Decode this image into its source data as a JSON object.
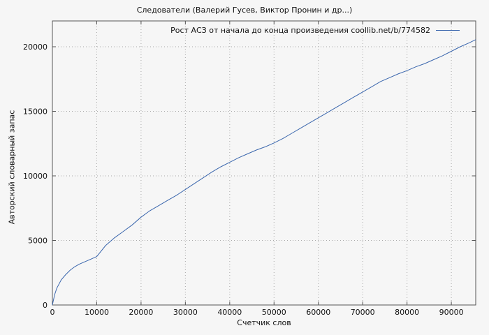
{
  "chart_data": {
    "type": "line",
    "title": "Следователи (Валерий Гусев, Виктор Пронин и др...)",
    "legend": "Рост АСЗ от начала до конца произведения coollib.net/b/774582",
    "xlabel": "Счетчик слов",
    "ylabel": "Авторский словарный запас",
    "xlim": [
      0,
      95500
    ],
    "ylim": [
      0,
      22000
    ],
    "grid": true,
    "legend_position": "top-right-inside",
    "xticks": [
      0,
      10000,
      20000,
      30000,
      40000,
      50000,
      60000,
      70000,
      80000,
      90000
    ],
    "xtick_labels": [
      "0",
      "10000",
      "20000",
      "30000",
      "40000",
      "50000",
      "60000",
      "70000",
      "80000",
      "90000"
    ],
    "yticks": [
      0,
      5000,
      10000,
      15000,
      20000
    ],
    "ytick_labels": [
      "0",
      "5000",
      "10000",
      "15000",
      "20000"
    ],
    "x": [
      0,
      500,
      1000,
      2000,
      3000,
      4000,
      5000,
      6000,
      7000,
      8000,
      9000,
      10000,
      12000,
      14000,
      16000,
      18000,
      20000,
      22000,
      24000,
      26000,
      28000,
      30000,
      32000,
      34000,
      36000,
      38000,
      40000,
      42000,
      44000,
      46000,
      48000,
      50000,
      52000,
      54000,
      56000,
      58000,
      60000,
      62000,
      64000,
      66000,
      68000,
      70000,
      72000,
      74000,
      76000,
      78000,
      80000,
      82000,
      84000,
      86000,
      88000,
      90000,
      92000,
      94000,
      95500
    ],
    "y": [
      0,
      800,
      1300,
      1950,
      2350,
      2700,
      2950,
      3150,
      3300,
      3450,
      3600,
      3750,
      4600,
      5200,
      5700,
      6200,
      6800,
      7300,
      7700,
      8100,
      8500,
      8950,
      9400,
      9850,
      10300,
      10700,
      11050,
      11400,
      11700,
      12000,
      12250,
      12550,
      12900,
      13300,
      13700,
      14100,
      14500,
      14900,
      15300,
      15700,
      16100,
      16500,
      16900,
      17300,
      17600,
      17900,
      18150,
      18450,
      18700,
      19000,
      19300,
      19650,
      20000,
      20300,
      20550
    ],
    "colors": {
      "line": "#3a66ad",
      "grid": "#a8a8a8",
      "border": "#555555",
      "background": "#f6f6f6",
      "text": "#111111"
    }
  }
}
